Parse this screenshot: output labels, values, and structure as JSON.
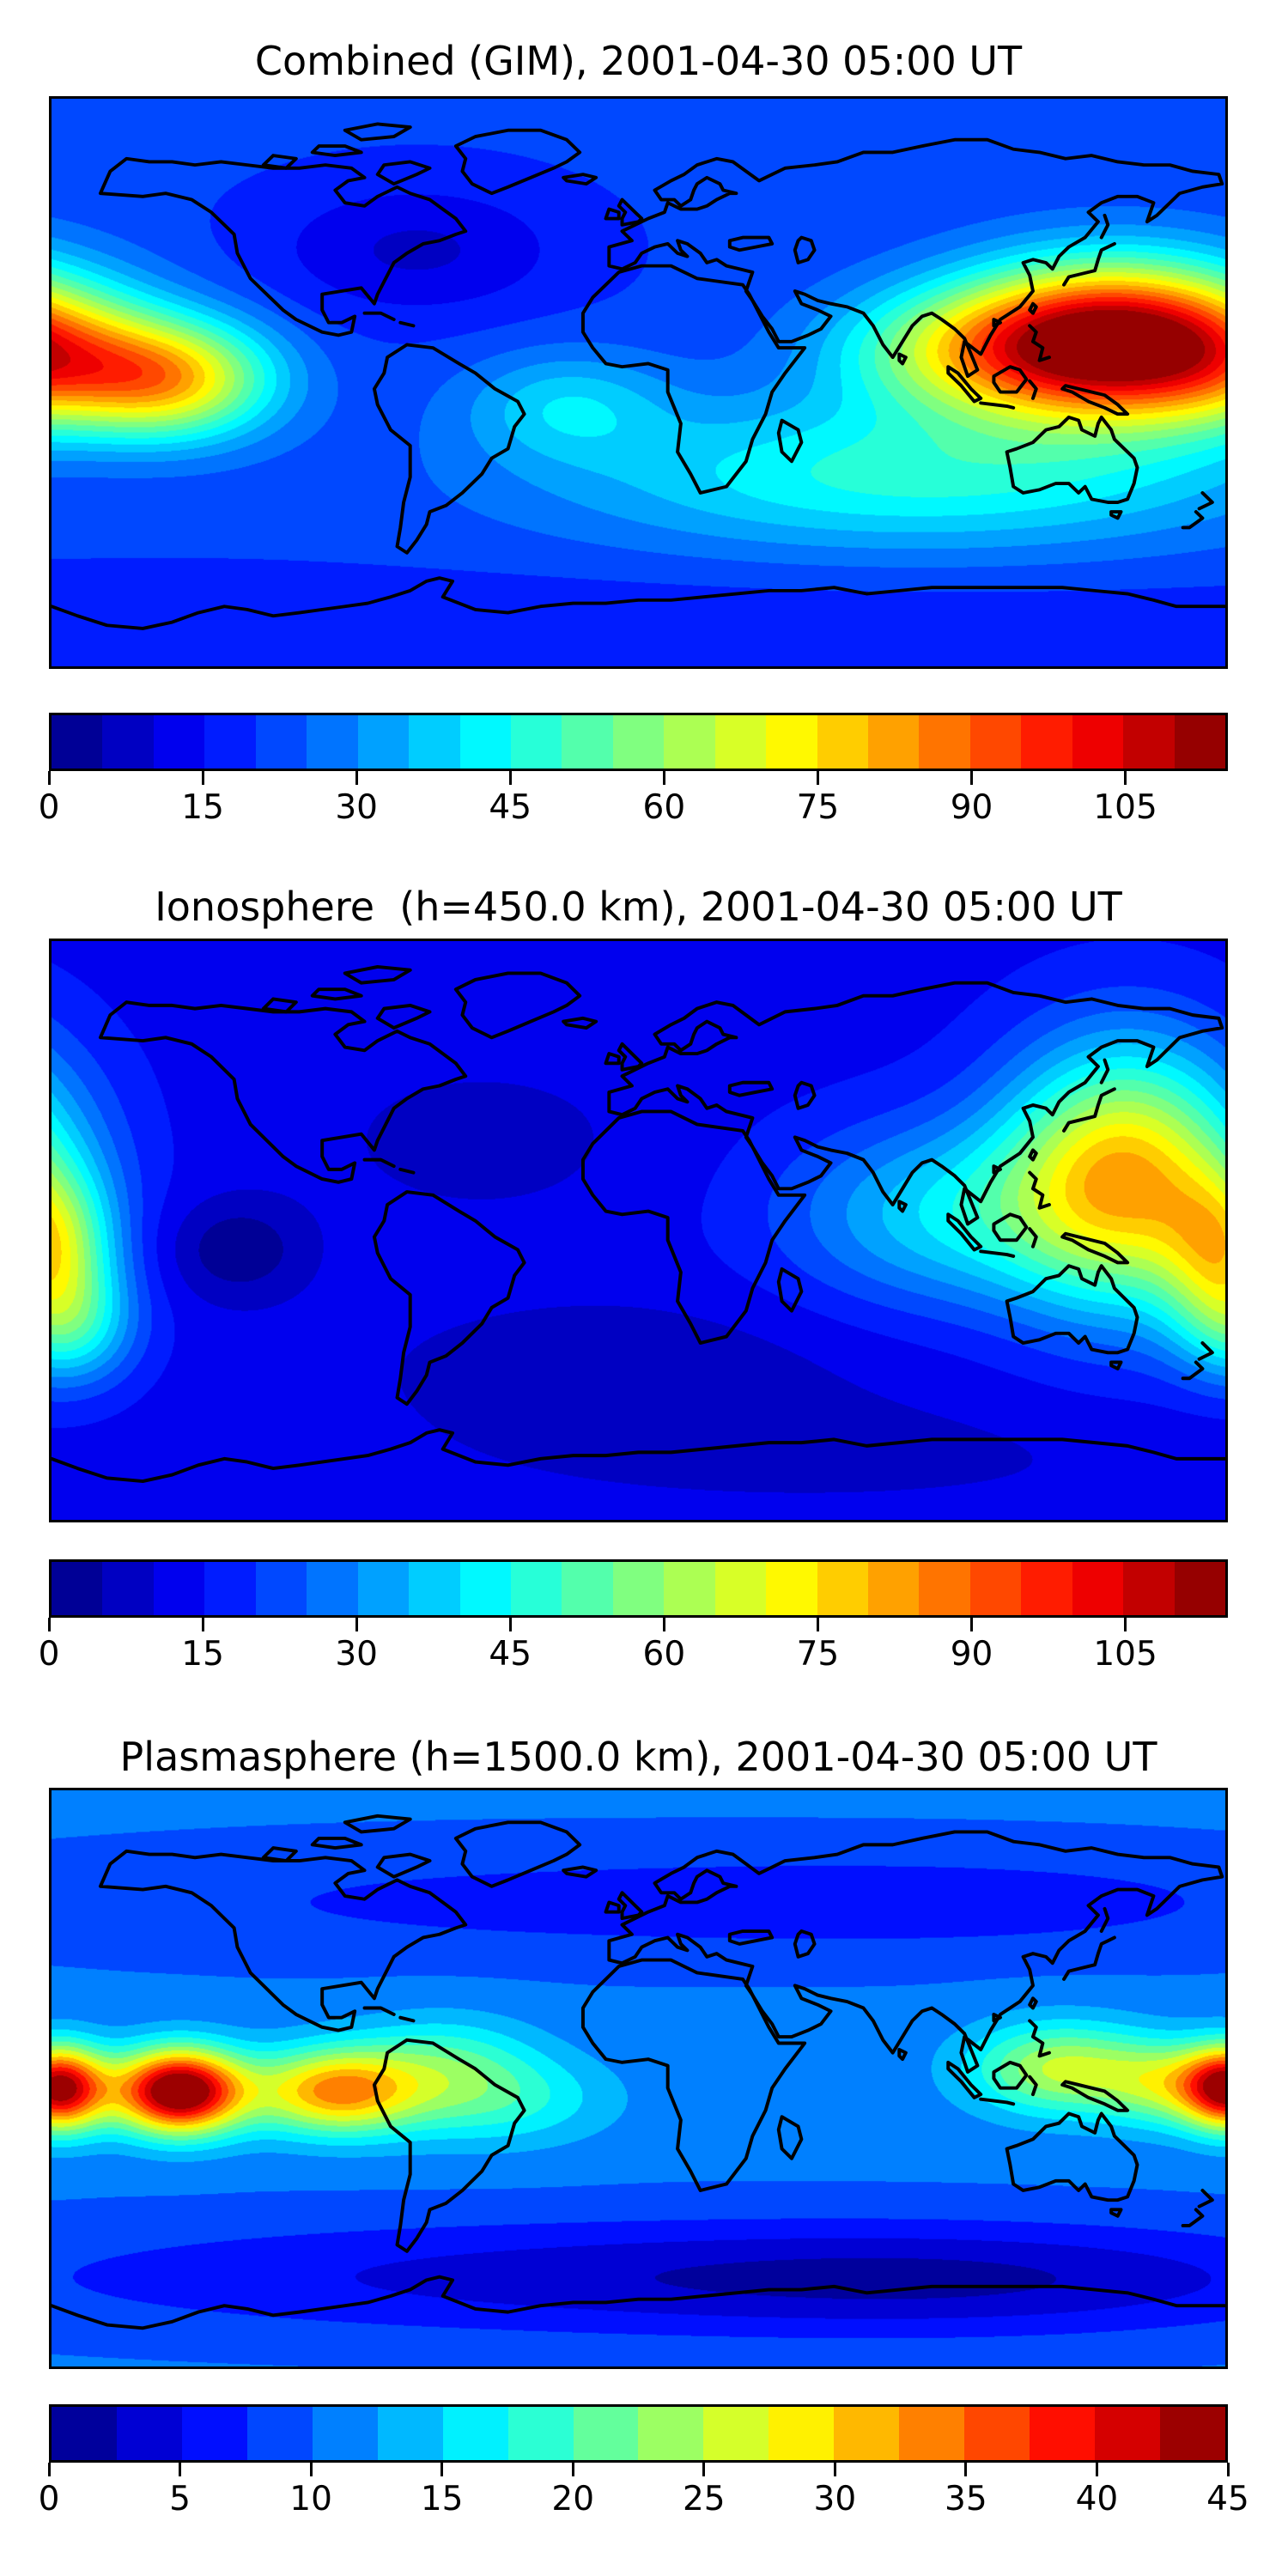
{
  "figure": {
    "background": "#ffffff",
    "map_border_color": "#000000",
    "coastline_color": "#000000",
    "text_color": "#000000"
  },
  "chart_data": {
    "type": "heatmap",
    "layout": "three stacked global filled-contour maps (equirectangular, lon -180..180, lat -90..90), each with a horizontal discrete colorbar below",
    "colormap": "jet",
    "grid": "off",
    "panels": [
      {
        "title": "Combined (GIM), 2001-04-30 05:00 UT",
        "vmin": 0,
        "vmax": 115,
        "level_step": 5,
        "colorbar_ticks": [
          0,
          15,
          30,
          45,
          60,
          75,
          90,
          105
        ],
        "base_value": 21,
        "hotspots": [
          {
            "name": "east-asia-anomaly-peak",
            "lon": 147,
            "lat": 13,
            "amp": 96,
            "slon": 33,
            "slat": 17,
            "wrap": true
          },
          {
            "name": "dateline-anomaly-peak",
            "lon": -176,
            "lat": 5,
            "amp": 22,
            "slon": 22,
            "slat": 14,
            "wrap": true
          },
          {
            "name": "central-pacific-ridge",
            "lon": -143,
            "lat": 1,
            "amp": 52,
            "slon": 22,
            "slat": 13,
            "wrap": false
          },
          {
            "name": "south-indian-band",
            "lon": 85,
            "lat": -29,
            "amp": 26,
            "slon": 75,
            "slat": 17,
            "wrap": false
          },
          {
            "name": "india-seasia-bridge",
            "lon": 100,
            "lat": 10,
            "amp": 30,
            "slon": 30,
            "slat": 14,
            "wrap": false
          },
          {
            "name": "atlantic-equator-patch",
            "lon": -22,
            "lat": -7,
            "amp": 16,
            "slon": 22,
            "slat": 12,
            "wrap": false
          },
          {
            "name": "north-america-low",
            "lon": -68,
            "lat": 42,
            "amp": -12,
            "slon": 32,
            "slat": 15,
            "wrap": false
          },
          {
            "name": "antarctic-low-band",
            "lon": 0,
            "lat": -82,
            "amp": -6,
            "slon": 250,
            "slat": 15,
            "wrap": false
          }
        ]
      },
      {
        "title": "Ionosphere  (h=450.0 km), 2001-04-30 05:00 UT",
        "vmin": 0,
        "vmax": 115,
        "level_step": 5,
        "colorbar_ticks": [
          0,
          15,
          30,
          45,
          60,
          75,
          90,
          105
        ],
        "base_value": 13,
        "hotspots": [
          {
            "name": "east-asia-anomaly-peak",
            "lon": 150,
            "lat": 17,
            "amp": 64,
            "slon": 26,
            "slat": 28,
            "wrap": true
          },
          {
            "name": "dateline-peak",
            "lon": 180,
            "lat": -6,
            "amp": 38,
            "slon": 13,
            "slat": 17,
            "wrap": true
          },
          {
            "name": "south-pacific-lobe",
            "lon": -174,
            "lat": -30,
            "amp": 26,
            "slon": 14,
            "slat": 13,
            "wrap": true
          },
          {
            "name": "india-seasia-bridge",
            "lon": 95,
            "lat": 5,
            "amp": 25,
            "slon": 35,
            "slat": 20,
            "wrap": false
          },
          {
            "name": "southeast-pacific-low",
            "lon": -123,
            "lat": -6,
            "amp": -12,
            "slon": 15,
            "slat": 11,
            "wrap": false
          },
          {
            "name": "south-atlantic-low",
            "lon": -5,
            "lat": -42,
            "amp": -6,
            "slon": 55,
            "slat": 16,
            "wrap": false
          },
          {
            "name": "northwest-atlantic-low",
            "lon": -48,
            "lat": 28,
            "amp": -5,
            "slon": 35,
            "slat": 18,
            "wrap": false
          },
          {
            "name": "antarctic-low-band",
            "lon": 60,
            "lat": -70,
            "amp": -4,
            "slon": 90,
            "slat": 14,
            "wrap": false
          }
        ]
      },
      {
        "title": "Plasmasphere (h=1500.0 km), 2001-04-30 05:00 UT",
        "vmin": 0,
        "vmax": 45,
        "level_step": 2.5,
        "colorbar_ticks": [
          0,
          5,
          10,
          15,
          20,
          25,
          30,
          35,
          40,
          45
        ],
        "base_value": 10.5,
        "hotspots": [
          {
            "name": "dateline-peak",
            "lon": -178,
            "lat": -3,
            "amp": 32,
            "slon": 10,
            "slat": 9,
            "wrap": true
          },
          {
            "name": "central-pacific-peak",
            "lon": -141,
            "lat": -4,
            "amp": 33,
            "slon": 13,
            "slat": 9,
            "wrap": false
          },
          {
            "name": "south-america-peak",
            "lon": -92,
            "lat": -4,
            "amp": 17,
            "slon": 16,
            "slat": 9,
            "wrap": false
          },
          {
            "name": "equatorial-band",
            "lon": -120,
            "lat": -4,
            "amp": 6,
            "slon": 45,
            "slat": 10,
            "wrap": false
          },
          {
            "name": "atlantic-tongue",
            "lon": -45,
            "lat": -7,
            "amp": 7,
            "slon": 25,
            "slat": 10,
            "wrap": false
          },
          {
            "name": "caribbean-patch",
            "lon": -60,
            "lat": 6,
            "amp": 7,
            "slon": 20,
            "slat": 10,
            "wrap": false
          },
          {
            "name": "southeast-asia-patch",
            "lon": 130,
            "lat": 3,
            "amp": 15,
            "slon": 20,
            "slat": 10,
            "wrap": false
          },
          {
            "name": "west-pacific-patch",
            "lon": 163,
            "lat": -2,
            "amp": 12,
            "slon": 14,
            "slat": 9,
            "wrap": false
          },
          {
            "name": "north-midlat-low",
            "lon": -30,
            "lat": 55,
            "amp": -3.5,
            "slon": 120,
            "slat": 13,
            "wrap": false
          },
          {
            "name": "north-midlat-low-2",
            "lon": 120,
            "lat": 55,
            "amp": -2.5,
            "slon": 80,
            "slat": 12,
            "wrap": false
          },
          {
            "name": "south-midlat-low",
            "lon": -20,
            "lat": -62,
            "amp": -6,
            "slon": 130,
            "slat": 13,
            "wrap": false
          },
          {
            "name": "south-midlat-low-2",
            "lon": 110,
            "lat": -63,
            "amp": -5,
            "slon": 80,
            "slat": 12,
            "wrap": false
          }
        ]
      }
    ]
  }
}
